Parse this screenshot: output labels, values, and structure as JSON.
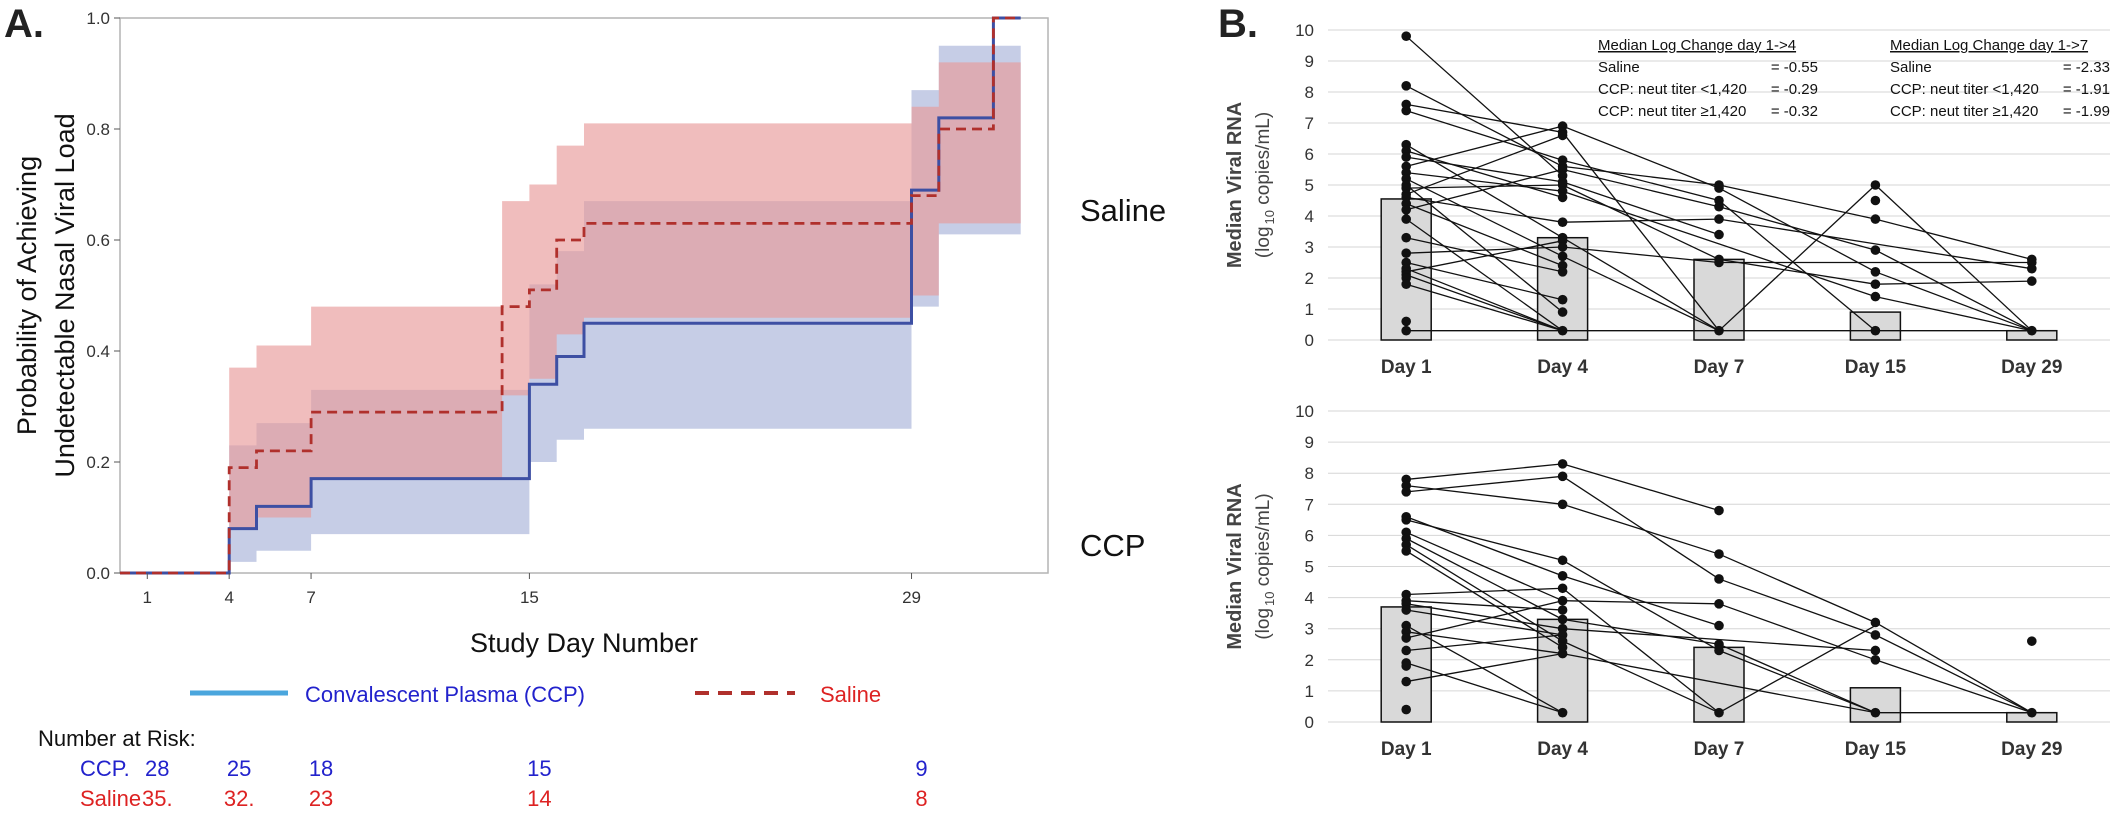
{
  "colors": {
    "ccp_line": "#3d4fa3",
    "ccp_band": "#a8b2d8",
    "saline_line": "#b0302c",
    "saline_band": "#e89a9a",
    "legend_ccp_swatch": "#4aa6dd",
    "risk_ccp_text": "#2222cc",
    "risk_saline_text": "#dd2222",
    "bar_fill": "#d9d9d9",
    "point": "#111111",
    "frame": "#b4b4b4"
  },
  "panel_a": {
    "label": "A.",
    "legend": {
      "ccp": "Convalescent Plasma (CCP)",
      "saline": "Saline"
    },
    "risk_table": {
      "title": "Number at Risk:",
      "rows": [
        {
          "name": "CCP.",
          "days": [
            1,
            4,
            7,
            15,
            29
          ],
          "values": [
            "28",
            "25",
            "18",
            "15",
            "9"
          ]
        },
        {
          "name": "Saline",
          "days": [
            1,
            4,
            7,
            15,
            29
          ],
          "values": [
            "35.",
            "32.",
            "23",
            "14",
            "8"
          ]
        }
      ]
    }
  },
  "panel_b": {
    "label": "B.",
    "group_labels": [
      "Saline",
      "CCP"
    ],
    "stats_tables": [
      {
        "title": "Median Log Change day 1->4",
        "rows": [
          [
            "Saline",
            "= -0.55"
          ],
          [
            "CCP: neut titer <1,420",
            "= -0.29"
          ],
          [
            "CCP: neut titer ≥1,420",
            "= -0.32"
          ]
        ]
      },
      {
        "title": "Median Log Change day 1->7",
        "rows": [
          [
            "Saline",
            "= -2.33"
          ],
          [
            "CCP: neut titer <1,420",
            "= -1.91"
          ],
          [
            "CCP: neut titer ≥1,420",
            "= -1.99"
          ]
        ]
      }
    ]
  },
  "chart_data": [
    {
      "type": "line",
      "subtype": "step",
      "title": "",
      "xlabel": "Study Day Number",
      "ylabel": [
        "Probability of Achieving",
        "Undetectable Nasal Viral Load"
      ],
      "xlim": [
        0,
        34
      ],
      "ylim": [
        0,
        1
      ],
      "xticks": [
        1,
        4,
        7,
        15,
        29
      ],
      "yticks": [
        "0.0",
        "0.2",
        "0.4",
        "0.6",
        "0.8",
        "1.0"
      ],
      "grid": false,
      "legend_position": "bottom",
      "series": [
        {
          "name": "Convalescent Plasma (CCP)",
          "x": [
            0,
            4,
            5,
            7,
            15,
            16,
            17,
            29,
            30,
            32
          ],
          "y": [
            0,
            0.08,
            0.12,
            0.17,
            0.34,
            0.39,
            0.45,
            0.69,
            0.82,
            1.0
          ],
          "ci_low": [
            0,
            0.02,
            0.04,
            0.07,
            0.2,
            0.24,
            0.26,
            0.48,
            0.61,
            0.61
          ],
          "ci_high": [
            0,
            0.23,
            0.27,
            0.33,
            0.52,
            0.58,
            0.67,
            0.87,
            0.95,
            0.95
          ]
        },
        {
          "name": "Saline",
          "x": [
            0,
            4,
            5,
            7,
            14,
            15,
            16,
            17,
            29,
            30,
            32
          ],
          "y": [
            0,
            0.19,
            0.22,
            0.29,
            0.48,
            0.51,
            0.6,
            0.63,
            0.68,
            0.8,
            1.0
          ],
          "ci_low": [
            0,
            0.08,
            0.1,
            0.17,
            0.32,
            0.35,
            0.43,
            0.46,
            0.5,
            0.63,
            0.63
          ],
          "ci_high": [
            0,
            0.37,
            0.41,
            0.48,
            0.67,
            0.7,
            0.77,
            0.81,
            0.84,
            0.92,
            0.92
          ]
        }
      ]
    },
    {
      "type": "bar",
      "group": "Saline",
      "title": "",
      "xlabel": "",
      "ylabel": "Median Viral RNA",
      "ylabel_unit_prefix": "(log",
      "ylabel_unit_sub": "10",
      "ylabel_unit_suffix": " copies/mL)",
      "ylim": [
        0,
        10
      ],
      "yticks": [
        "0",
        "1",
        "2",
        "3",
        "4",
        "5",
        "6",
        "7",
        "8",
        "9",
        "10"
      ],
      "grid": true,
      "categories": [
        "Day 1",
        "Day 4",
        "Day 7",
        "Day 15",
        "Day 29"
      ],
      "values": [
        4.55,
        3.3,
        2.6,
        0.9,
        0.3
      ],
      "points": [
        [
          9.8,
          8.2,
          7.6,
          7.4,
          6.3,
          6.1,
          5.9,
          5.6,
          5.4,
          5.2,
          5.0,
          4.9,
          4.7,
          4.6,
          4.4,
          4.2,
          3.9,
          3.3,
          2.8,
          2.5,
          2.3,
          2.2,
          2.1,
          2.0,
          1.8,
          0.6,
          0.3
        ],
        [
          6.9,
          6.7,
          6.6,
          5.8,
          5.6,
          5.5,
          5.3,
          5.1,
          5.0,
          4.8,
          4.6,
          3.8,
          3.3,
          3.2,
          3.0,
          2.7,
          2.4,
          2.2,
          1.3,
          0.9,
          0.3
        ],
        [
          5.0,
          4.9,
          4.5,
          4.3,
          3.9,
          3.4,
          2.6,
          2.5,
          0.3
        ],
        [
          5.0,
          4.5,
          3.9,
          2.9,
          2.2,
          1.8,
          1.4,
          0.3
        ],
        [
          2.6,
          2.5,
          2.3,
          1.9,
          0.3
        ]
      ],
      "links": [
        [
          [
            0,
            9.8
          ],
          [
            1,
            5.3
          ]
        ],
        [
          [
            0,
            8.2
          ],
          [
            1,
            5.6
          ]
        ],
        [
          [
            0,
            7.6
          ],
          [
            1,
            6.7
          ]
        ],
        [
          [
            0,
            7.4
          ],
          [
            1,
            5.8
          ]
        ],
        [
          [
            0,
            6.3
          ],
          [
            1,
            3.3
          ]
        ],
        [
          [
            0,
            6.1
          ],
          [
            1,
            4.6
          ]
        ],
        [
          [
            0,
            5.9
          ],
          [
            1,
            5.1
          ]
        ],
        [
          [
            0,
            5.6
          ],
          [
            1,
            6.9
          ]
        ],
        [
          [
            0,
            5.4
          ],
          [
            1,
            4.8
          ]
        ],
        [
          [
            0,
            5.2
          ],
          [
            1,
            2.7
          ]
        ],
        [
          [
            0,
            5.0
          ],
          [
            1,
            0.9
          ]
        ],
        [
          [
            0,
            4.9
          ],
          [
            1,
            5.0
          ]
        ],
        [
          [
            0,
            4.7
          ],
          [
            1,
            6.6
          ]
        ],
        [
          [
            0,
            4.6
          ],
          [
            1,
            3.8
          ]
        ],
        [
          [
            0,
            4.4
          ],
          [
            1,
            2.4
          ]
        ],
        [
          [
            0,
            4.2
          ],
          [
            1,
            5.5
          ]
        ],
        [
          [
            0,
            3.9
          ],
          [
            1,
            0.3
          ]
        ],
        [
          [
            0,
            3.3
          ],
          [
            1,
            2.2
          ]
        ],
        [
          [
            0,
            2.8
          ],
          [
            1,
            3.0
          ]
        ],
        [
          [
            0,
            2.5
          ],
          [
            1,
            1.3
          ]
        ],
        [
          [
            0,
            2.3
          ],
          [
            1,
            0.3
          ]
        ],
        [
          [
            0,
            2.2
          ],
          [
            1,
            3.2
          ]
        ],
        [
          [
            0,
            2.1
          ],
          [
            1,
            0.3
          ]
        ],
        [
          [
            0,
            1.8
          ],
          [
            1,
            0.3
          ]
        ],
        [
          [
            1,
            6.9
          ],
          [
            2,
            4.9
          ]
        ],
        [
          [
            1,
            6.7
          ],
          [
            2,
            0.3
          ]
        ],
        [
          [
            1,
            5.8
          ],
          [
            2,
            4.5
          ]
        ],
        [
          [
            1,
            5.6
          ],
          [
            2,
            5.0
          ]
        ],
        [
          [
            1,
            5.5
          ],
          [
            2,
            4.3
          ]
        ],
        [
          [
            1,
            5.1
          ],
          [
            2,
            3.4
          ]
        ],
        [
          [
            1,
            5.0
          ],
          [
            2,
            2.6
          ]
        ],
        [
          [
            1,
            4.8
          ],
          [
            3,
            1.4
          ]
        ],
        [
          [
            1,
            3.8
          ],
          [
            2,
            3.9
          ]
        ],
        [
          [
            1,
            3.3
          ],
          [
            2,
            0.3
          ]
        ],
        [
          [
            1,
            3.0
          ],
          [
            2,
            2.5
          ]
        ],
        [
          [
            1,
            2.7
          ],
          [
            2,
            0.3
          ]
        ],
        [
          [
            2,
            5.0
          ],
          [
            3,
            3.9
          ]
        ],
        [
          [
            2,
            4.9
          ],
          [
            3,
            2.2
          ]
        ],
        [
          [
            2,
            4.5
          ],
          [
            3,
            0.3
          ]
        ],
        [
          [
            2,
            4.3
          ],
          [
            3,
            2.9
          ]
        ],
        [
          [
            2,
            3.9
          ],
          [
            4,
            2.3
          ]
        ],
        [
          [
            2,
            2.6
          ],
          [
            3,
            1.8
          ]
        ],
        [
          [
            2,
            0.3
          ],
          [
            3,
            5.0
          ]
        ],
        [
          [
            2,
            2.5
          ],
          [
            4,
            2.5
          ]
        ],
        [
          [
            3,
            5.0
          ],
          [
            4,
            0.3
          ]
        ],
        [
          [
            3,
            3.9
          ],
          [
            4,
            2.6
          ]
        ],
        [
          [
            3,
            2.9
          ],
          [
            4,
            0.3
          ]
        ],
        [
          [
            3,
            1.8
          ],
          [
            4,
            1.9
          ]
        ],
        [
          [
            3,
            1.4
          ],
          [
            4,
            0.3
          ]
        ],
        [
          [
            3,
            2.2
          ],
          [
            4,
            0.3
          ]
        ],
        [
          [
            0,
            0.3
          ],
          [
            4,
            0.3
          ]
        ]
      ]
    },
    {
      "type": "bar",
      "group": "CCP",
      "title": "",
      "xlabel": "",
      "ylabel": "Median Viral RNA",
      "ylabel_unit_prefix": "(log",
      "ylabel_unit_sub": "10",
      "ylabel_unit_suffix": " copies/mL)",
      "ylim": [
        0,
        10
      ],
      "yticks": [
        "0",
        "1",
        "2",
        "3",
        "4",
        "5",
        "6",
        "7",
        "8",
        "9",
        "10"
      ],
      "grid": true,
      "categories": [
        "Day 1",
        "Day 4",
        "Day 7",
        "Day 15",
        "Day 29"
      ],
      "values": [
        3.7,
        3.3,
        2.4,
        1.1,
        0.3
      ],
      "points": [
        [
          7.8,
          7.6,
          7.4,
          6.6,
          6.5,
          6.1,
          5.9,
          5.7,
          5.5,
          4.1,
          3.9,
          3.8,
          3.6,
          3.1,
          2.9,
          2.7,
          2.3,
          1.9,
          1.8,
          1.3,
          0.4
        ],
        [
          8.3,
          7.9,
          7.0,
          5.2,
          4.7,
          4.3,
          3.9,
          3.6,
          3.3,
          3.0,
          2.8,
          2.6,
          2.4,
          2.2,
          0.3
        ],
        [
          6.8,
          5.4,
          4.6,
          3.8,
          3.1,
          2.5,
          2.3,
          0.3
        ],
        [
          3.2,
          2.8,
          2.3,
          2.0,
          0.3
        ],
        [
          2.6,
          0.3
        ]
      ],
      "links": [
        [
          [
            0,
            7.8
          ],
          [
            1,
            8.3
          ]
        ],
        [
          [
            0,
            7.6
          ],
          [
            1,
            7.0
          ]
        ],
        [
          [
            0,
            7.4
          ],
          [
            1,
            7.9
          ]
        ],
        [
          [
            0,
            6.6
          ],
          [
            1,
            4.7
          ]
        ],
        [
          [
            0,
            6.5
          ],
          [
            1,
            5.2
          ]
        ],
        [
          [
            0,
            6.1
          ],
          [
            1,
            3.9
          ]
        ],
        [
          [
            0,
            5.9
          ],
          [
            1,
            3.3
          ]
        ],
        [
          [
            0,
            5.7
          ],
          [
            1,
            2.6
          ]
        ],
        [
          [
            0,
            5.5
          ],
          [
            1,
            2.4
          ]
        ],
        [
          [
            0,
            4.1
          ],
          [
            1,
            4.3
          ]
        ],
        [
          [
            0,
            3.9
          ],
          [
            1,
            3.6
          ]
        ],
        [
          [
            0,
            3.8
          ],
          [
            1,
            3.0
          ]
        ],
        [
          [
            0,
            3.6
          ],
          [
            1,
            2.8
          ]
        ],
        [
          [
            0,
            3.1
          ],
          [
            1,
            0.3
          ]
        ],
        [
          [
            0,
            2.9
          ],
          [
            1,
            2.2
          ]
        ],
        [
          [
            0,
            2.7
          ],
          [
            1,
            3.9
          ]
        ],
        [
          [
            0,
            2.3
          ],
          [
            1,
            2.8
          ]
        ],
        [
          [
            0,
            1.9
          ],
          [
            1,
            0.3
          ]
        ],
        [
          [
            0,
            1.3
          ],
          [
            1,
            2.2
          ]
        ],
        [
          [
            1,
            8.3
          ],
          [
            2,
            6.8
          ]
        ],
        [
          [
            1,
            7.9
          ],
          [
            2,
            4.6
          ]
        ],
        [
          [
            1,
            7.0
          ],
          [
            2,
            5.4
          ]
        ],
        [
          [
            1,
            5.2
          ],
          [
            2,
            2.3
          ]
        ],
        [
          [
            1,
            4.7
          ],
          [
            2,
            3.1
          ]
        ],
        [
          [
            1,
            4.3
          ],
          [
            2,
            0.3
          ]
        ],
        [
          [
            1,
            3.9
          ],
          [
            2,
            3.8
          ]
        ],
        [
          [
            1,
            3.3
          ],
          [
            2,
            2.5
          ]
        ],
        [
          [
            1,
            3.0
          ],
          [
            3,
            2.3
          ]
        ],
        [
          [
            1,
            2.6
          ],
          [
            2,
            0.3
          ]
        ],
        [
          [
            1,
            2.2
          ],
          [
            3,
            0.3
          ]
        ],
        [
          [
            2,
            5.4
          ],
          [
            3,
            3.2
          ]
        ],
        [
          [
            2,
            4.6
          ],
          [
            3,
            2.8
          ]
        ],
        [
          [
            2,
            3.8
          ],
          [
            3,
            2.0
          ]
        ],
        [
          [
            2,
            2.5
          ],
          [
            3,
            0.3
          ]
        ],
        [
          [
            2,
            0.3
          ],
          [
            3,
            3.1
          ]
        ],
        [
          [
            2,
            2.3
          ],
          [
            3,
            0.3
          ]
        ],
        [
          [
            3,
            3.2
          ],
          [
            4,
            0.3
          ]
        ],
        [
          [
            3,
            2.8
          ],
          [
            4,
            0.3
          ]
        ],
        [
          [
            3,
            2.0
          ],
          [
            4,
            0.3
          ]
        ],
        [
          [
            3,
            0.3
          ],
          [
            4,
            0.3
          ]
        ]
      ]
    }
  ]
}
